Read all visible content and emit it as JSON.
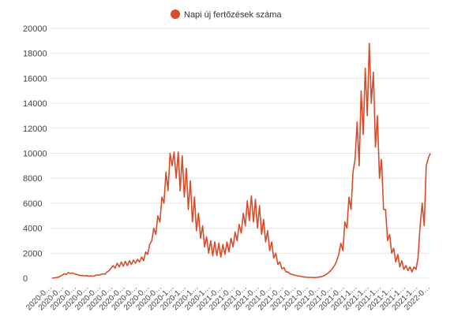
{
  "chart_data": {
    "type": "line",
    "legend": {
      "label": "Napi új fertőzések száma",
      "position": "top-center"
    },
    "series": [
      {
        "name": "Napi új fertőzések száma",
        "color": "#d84c2a",
        "points": [
          [
            0,
            0
          ],
          [
            3,
            30
          ],
          [
            6,
            80
          ],
          [
            8,
            150
          ],
          [
            10,
            250
          ],
          [
            12,
            350
          ],
          [
            14,
            300
          ],
          [
            16,
            450
          ],
          [
            18,
            380
          ],
          [
            20,
            420
          ],
          [
            22,
            350
          ],
          [
            24,
            300
          ],
          [
            26,
            250
          ],
          [
            28,
            200
          ],
          [
            30,
            220
          ],
          [
            32,
            180
          ],
          [
            34,
            200
          ],
          [
            36,
            160
          ],
          [
            38,
            180
          ],
          [
            40,
            150
          ],
          [
            42,
            200
          ],
          [
            44,
            260
          ],
          [
            46,
            230
          ],
          [
            48,
            300
          ],
          [
            50,
            350
          ],
          [
            52,
            320
          ],
          [
            54,
            500
          ],
          [
            56,
            600
          ],
          [
            58,
            800
          ],
          [
            60,
            1000
          ],
          [
            62,
            800
          ],
          [
            64,
            1200
          ],
          [
            66,
            900
          ],
          [
            68,
            1300
          ],
          [
            70,
            950
          ],
          [
            72,
            1350
          ],
          [
            74,
            1000
          ],
          [
            76,
            1400
          ],
          [
            78,
            1100
          ],
          [
            80,
            1450
          ],
          [
            82,
            1200
          ],
          [
            84,
            1500
          ],
          [
            86,
            1300
          ],
          [
            88,
            1700
          ],
          [
            90,
            1400
          ],
          [
            92,
            2100
          ],
          [
            94,
            1900
          ],
          [
            96,
            2700
          ],
          [
            98,
            3000
          ],
          [
            100,
            4000
          ],
          [
            102,
            3500
          ],
          [
            104,
            5000
          ],
          [
            106,
            4500
          ],
          [
            108,
            6500
          ],
          [
            110,
            6000
          ],
          [
            112,
            8500
          ],
          [
            114,
            7000
          ],
          [
            116,
            10000
          ],
          [
            118,
            9000
          ],
          [
            120,
            10100
          ],
          [
            122,
            8000
          ],
          [
            124,
            10100
          ],
          [
            126,
            7000
          ],
          [
            128,
            9800
          ],
          [
            130,
            6500
          ],
          [
            132,
            8800
          ],
          [
            134,
            5500
          ],
          [
            136,
            7800
          ],
          [
            138,
            4500
          ],
          [
            140,
            6500
          ],
          [
            142,
            3800
          ],
          [
            144,
            5200
          ],
          [
            146,
            3200
          ],
          [
            148,
            4200
          ],
          [
            150,
            2500
          ],
          [
            152,
            3300
          ],
          [
            154,
            2000
          ],
          [
            156,
            3000
          ],
          [
            158,
            1800
          ],
          [
            160,
            2900
          ],
          [
            162,
            1800
          ],
          [
            164,
            2800
          ],
          [
            166,
            1700
          ],
          [
            168,
            2700
          ],
          [
            170,
            1900
          ],
          [
            172,
            2900
          ],
          [
            174,
            2100
          ],
          [
            176,
            3200
          ],
          [
            178,
            2500
          ],
          [
            180,
            3700
          ],
          [
            182,
            3000
          ],
          [
            184,
            4300
          ],
          [
            186,
            3600
          ],
          [
            188,
            5200
          ],
          [
            190,
            4200
          ],
          [
            192,
            6200
          ],
          [
            194,
            4600
          ],
          [
            196,
            6600
          ],
          [
            198,
            4500
          ],
          [
            200,
            6300
          ],
          [
            202,
            4000
          ],
          [
            204,
            5800
          ],
          [
            206,
            3500
          ],
          [
            208,
            4700
          ],
          [
            210,
            2900
          ],
          [
            212,
            3800
          ],
          [
            214,
            2200
          ],
          [
            216,
            2900
          ],
          [
            218,
            1600
          ],
          [
            220,
            2000
          ],
          [
            222,
            1100
          ],
          [
            224,
            1300
          ],
          [
            226,
            750
          ],
          [
            228,
            850
          ],
          [
            230,
            500
          ],
          [
            232,
            500
          ],
          [
            234,
            350
          ],
          [
            236,
            300
          ],
          [
            238,
            250
          ],
          [
            240,
            220
          ],
          [
            242,
            180
          ],
          [
            244,
            150
          ],
          [
            246,
            120
          ],
          [
            248,
            100
          ],
          [
            250,
            80
          ],
          [
            252,
            70
          ],
          [
            254,
            60
          ],
          [
            256,
            60
          ],
          [
            258,
            50
          ],
          [
            260,
            60
          ],
          [
            262,
            80
          ],
          [
            264,
            110
          ],
          [
            266,
            150
          ],
          [
            268,
            230
          ],
          [
            270,
            320
          ],
          [
            272,
            450
          ],
          [
            274,
            600
          ],
          [
            276,
            800
          ],
          [
            278,
            1050
          ],
          [
            280,
            1400
          ],
          [
            282,
            1900
          ],
          [
            284,
            2800
          ],
          [
            286,
            2200
          ],
          [
            288,
            4500
          ],
          [
            290,
            4000
          ],
          [
            292,
            6500
          ],
          [
            294,
            5500
          ],
          [
            296,
            8500
          ],
          [
            298,
            9500
          ],
          [
            300,
            12500
          ],
          [
            302,
            9000
          ],
          [
            304,
            15000
          ],
          [
            306,
            11500
          ],
          [
            308,
            16800
          ],
          [
            310,
            13000
          ],
          [
            312,
            18800
          ],
          [
            314,
            14000
          ],
          [
            316,
            16500
          ],
          [
            318,
            10500
          ],
          [
            320,
            13000
          ],
          [
            322,
            8000
          ],
          [
            324,
            9500
          ],
          [
            326,
            5500
          ],
          [
            328,
            5500
          ],
          [
            330,
            3000
          ],
          [
            332,
            3500
          ],
          [
            334,
            2000
          ],
          [
            336,
            2400
          ],
          [
            338,
            1300
          ],
          [
            340,
            1900
          ],
          [
            342,
            900
          ],
          [
            344,
            1400
          ],
          [
            346,
            700
          ],
          [
            348,
            1000
          ],
          [
            350,
            600
          ],
          [
            352,
            900
          ],
          [
            354,
            500
          ],
          [
            356,
            900
          ],
          [
            358,
            700
          ],
          [
            360,
            1700
          ],
          [
            362,
            4200
          ],
          [
            364,
            6000
          ],
          [
            366,
            4200
          ],
          [
            368,
            9000
          ],
          [
            370,
            9600
          ],
          [
            372,
            10000
          ]
        ]
      }
    ],
    "y_axis": {
      "min": 0,
      "max": 20000,
      "ticks": [
        0,
        2000,
        4000,
        6000,
        8000,
        10000,
        12000,
        14000,
        16000,
        18000,
        20000
      ],
      "grid": true
    },
    "x_axis": {
      "range": [
        0,
        372
      ],
      "tick_labels": [
        "2020-0…",
        "2020-0…",
        "2020-0…",
        "2020-0…",
        "2020-0…",
        "2020-0…",
        "2020-0…",
        "2020-0…",
        "2020-0…",
        "2020-0…",
        "2020-1…",
        "2020-1…",
        "2020-1…",
        "2020-1…",
        "2021-0…",
        "2021-0…",
        "2021-0…",
        "2021-0…",
        "2021-0…",
        "2021-0…",
        "2021-0…",
        "2021-0…",
        "2021-0…",
        "2021-0…",
        "2021-0…",
        "2021-1…",
        "2021-1…",
        "2021-1…",
        "2021-1…",
        "2021-1…",
        "2021-1…",
        "2022-0…"
      ],
      "label_rotation_deg": -45
    }
  }
}
